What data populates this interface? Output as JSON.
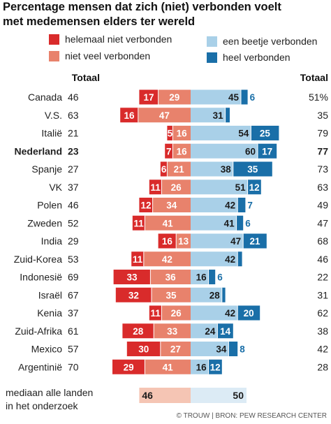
{
  "chart_data": {
    "type": "bar",
    "title_lines": [
      "Percentage mensen dat zich (niet) verbonden voelt",
      "met medemensen elders ter wereld"
    ],
    "legend": [
      {
        "key": "helemaal_niet",
        "label": "helemaal niet verbonden",
        "color": "#d92b2b"
      },
      {
        "key": "niet_veel",
        "label": "niet veel verbonden",
        "color": "#e8826c"
      },
      {
        "key": "beetje",
        "label": "een beetje verbonden",
        "color": "#a9d0e8"
      },
      {
        "key": "heel",
        "label": "heel verbonden",
        "color": "#1a6fa8"
      }
    ],
    "total_label_left": "Totaal",
    "total_label_right": "Totaal",
    "countries": [
      {
        "name": "Canada",
        "bold": false,
        "total_left": "46",
        "helemaal_niet": 17,
        "niet_veel": 29,
        "beetje": 45,
        "heel": 6,
        "total_right": "51%"
      },
      {
        "name": "V.S.",
        "bold": false,
        "total_left": "63",
        "helemaal_niet": 16,
        "niet_veel": 47,
        "beetje": 31,
        "heel": 4,
        "total_right": "35"
      },
      {
        "name": "Italië",
        "bold": false,
        "total_left": "21",
        "helemaal_niet": 5,
        "niet_veel": 16,
        "beetje": 54,
        "heel": 25,
        "total_right": "79"
      },
      {
        "name": "Nederland",
        "bold": true,
        "total_left": "23",
        "helemaal_niet": 7,
        "niet_veel": 16,
        "beetje": 60,
        "heel": 17,
        "total_right": "77"
      },
      {
        "name": "Spanje",
        "bold": false,
        "total_left": "27",
        "helemaal_niet": 6,
        "niet_veel": 21,
        "beetje": 38,
        "heel": 35,
        "total_right": "73"
      },
      {
        "name": "VK",
        "bold": false,
        "total_left": "37",
        "helemaal_niet": 11,
        "niet_veel": 26,
        "beetje": 51,
        "heel": 12,
        "total_right": "63"
      },
      {
        "name": "Polen",
        "bold": false,
        "total_left": "46",
        "helemaal_niet": 12,
        "niet_veel": 34,
        "beetje": 42,
        "heel": 7,
        "total_right": "49"
      },
      {
        "name": "Zweden",
        "bold": false,
        "total_left": "52",
        "helemaal_niet": 11,
        "niet_veel": 41,
        "beetje": 41,
        "heel": 6,
        "total_right": "47"
      },
      {
        "name": "India",
        "bold": false,
        "total_left": "29",
        "helemaal_niet": 16,
        "niet_veel": 13,
        "beetje": 47,
        "heel": 21,
        "total_right": "68"
      },
      {
        "name": "Zuid-Korea",
        "bold": false,
        "total_left": "53",
        "helemaal_niet": 11,
        "niet_veel": 42,
        "beetje": 42,
        "heel": 4,
        "total_right": "46"
      },
      {
        "name": "Indonesië",
        "bold": false,
        "total_left": "69",
        "helemaal_niet": 33,
        "niet_veel": 36,
        "beetje": 16,
        "heel": 6,
        "total_right": "22"
      },
      {
        "name": "Israël",
        "bold": false,
        "total_left": "67",
        "helemaal_niet": 32,
        "niet_veel": 35,
        "beetje": 28,
        "heel": 3,
        "total_right": "31"
      },
      {
        "name": "Kenia",
        "bold": false,
        "total_left": "37",
        "helemaal_niet": 11,
        "niet_veel": 26,
        "beetje": 42,
        "heel": 20,
        "total_right": "62"
      },
      {
        "name": "Zuid-Afrika",
        "bold": false,
        "total_left": "61",
        "helemaal_niet": 28,
        "niet_veel": 33,
        "beetje": 24,
        "heel": 14,
        "total_right": "38"
      },
      {
        "name": "Mexico",
        "bold": false,
        "total_left": "57",
        "helemaal_niet": 30,
        "niet_veel": 27,
        "beetje": 34,
        "heel": 8,
        "total_right": "42"
      },
      {
        "name": "Argentinië",
        "bold": false,
        "total_left": "70",
        "helemaal_niet": 29,
        "niet_veel": 41,
        "beetje": 16,
        "heel": 12,
        "total_right": "28"
      }
    ],
    "hidden_labels": [
      {
        "country": "V.S.",
        "key": "heel"
      },
      {
        "country": "Zuid-Korea",
        "key": "heel"
      },
      {
        "country": "Israël",
        "key": "heel"
      }
    ],
    "median": {
      "label_lines": [
        "mediaan alle landen",
        "in het onderzoek"
      ],
      "left_value": 46,
      "right_value": 50,
      "left_color": "#f5c5b4",
      "right_color": "#dcebf5"
    },
    "source": "© TROUW | BRON: PEW RESEARCH CENTER"
  }
}
